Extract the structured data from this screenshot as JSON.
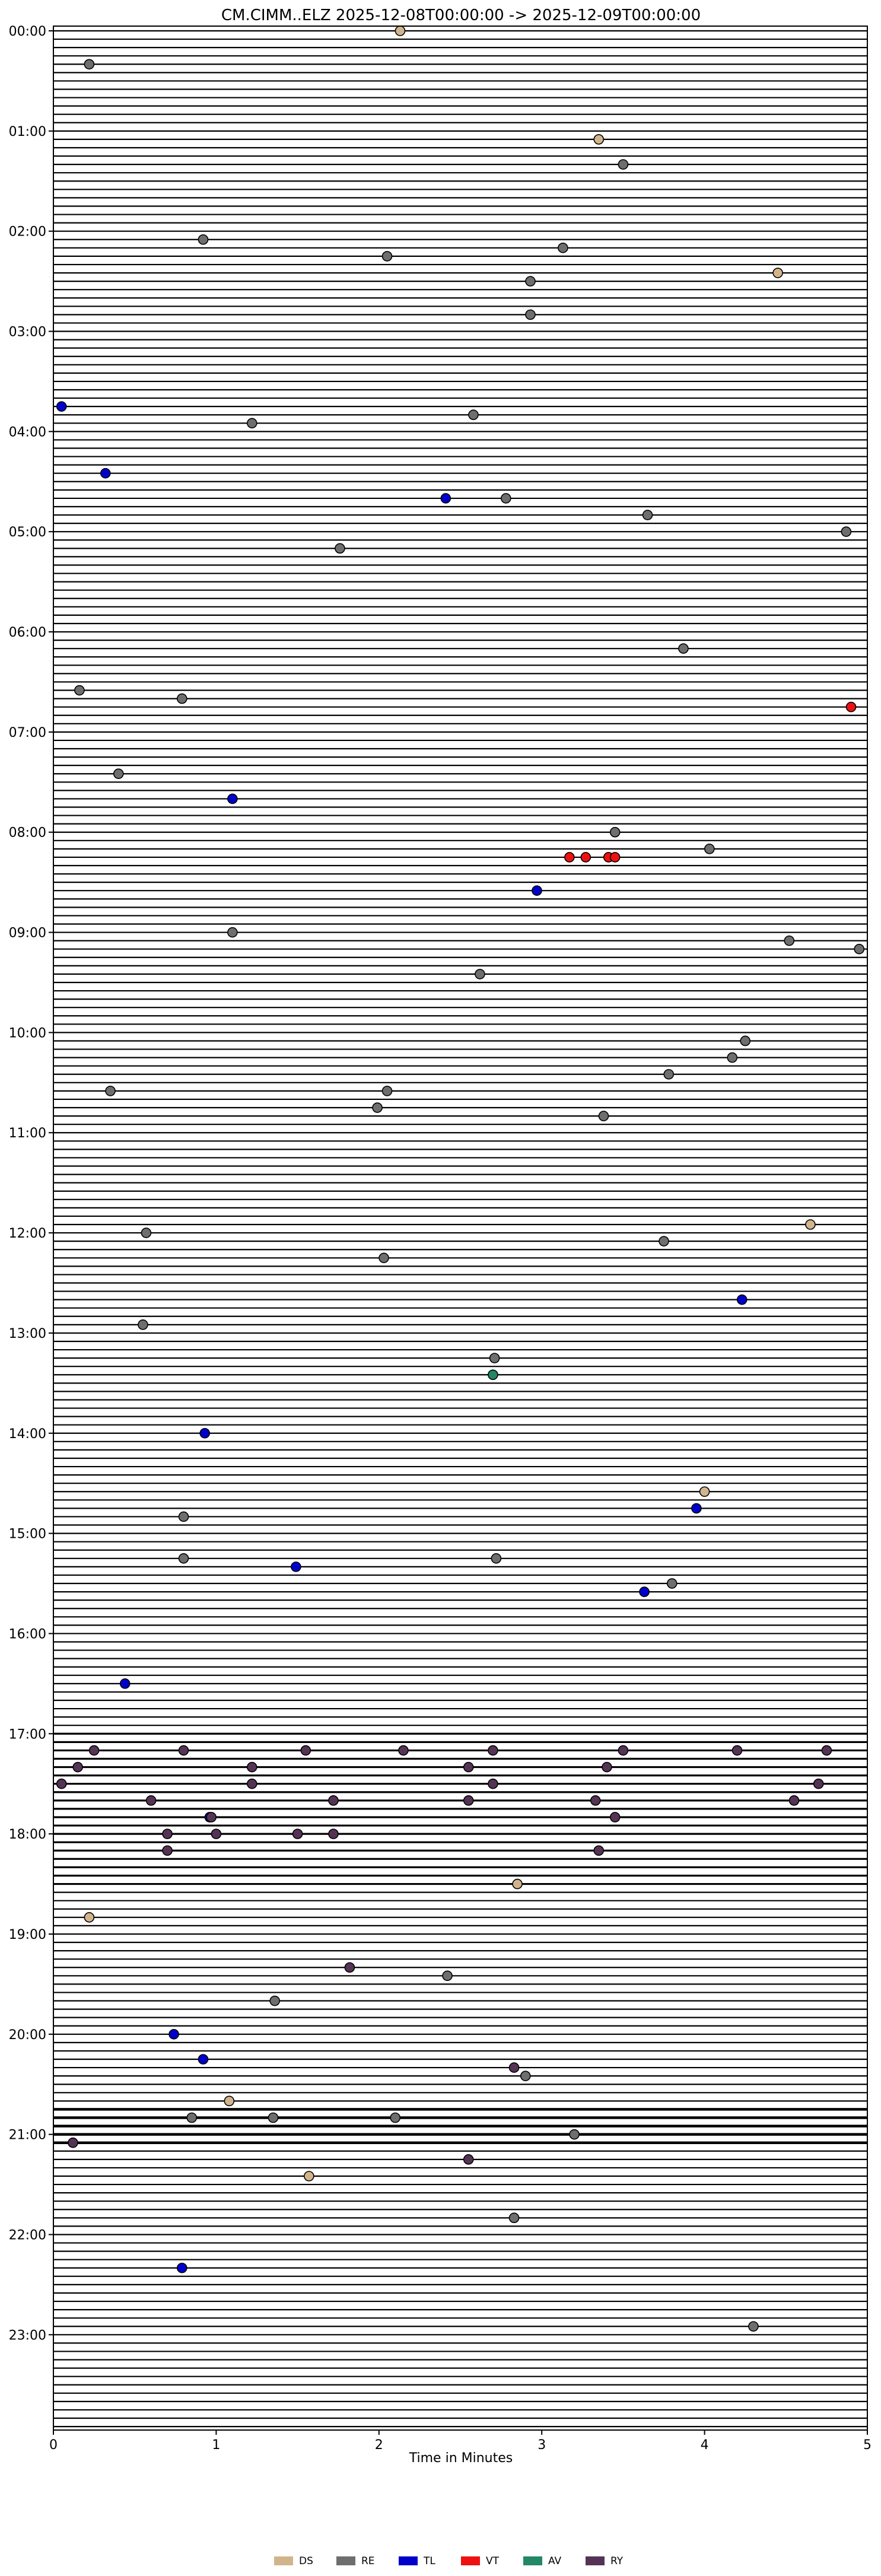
{
  "chart_data": {
    "type": "scatter",
    "title": "CM.CIMM..ELZ  2025-12-08T00:00:00 -> 2025-12-09T00:00:00",
    "xlabel": "Time in Minutes",
    "ylabel": "",
    "xlim": [
      0,
      5
    ],
    "x_ticks": [
      "0",
      "1",
      "2",
      "3",
      "4",
      "5"
    ],
    "y_ticks": [
      "00:00",
      "01:00",
      "02:00",
      "03:00",
      "04:00",
      "05:00",
      "06:00",
      "07:00",
      "08:00",
      "09:00",
      "10:00",
      "11:00",
      "12:00",
      "13:00",
      "14:00",
      "15:00",
      "16:00",
      "17:00",
      "18:00",
      "19:00",
      "20:00",
      "21:00",
      "22:00",
      "23:00"
    ],
    "rows_per_hour": 12,
    "grid": false,
    "legend_position": "bottom-center",
    "series": [
      {
        "name": "DS",
        "color": "#d2b48c",
        "points": [
          {
            "row": 0,
            "x": 2.13
          },
          {
            "row": 13,
            "x": 3.35
          },
          {
            "row": 29,
            "x": 4.45
          },
          {
            "row": 143,
            "x": 4.65
          },
          {
            "row": 175,
            "x": 4.0
          },
          {
            "row": 222,
            "x": 2.85
          },
          {
            "row": 226,
            "x": 0.22
          },
          {
            "row": 248,
            "x": 1.08
          },
          {
            "row": 257,
            "x": 1.57
          }
        ]
      },
      {
        "name": "RE",
        "color": "#6e6e6e",
        "points": [
          {
            "row": 4,
            "x": 0.22
          },
          {
            "row": 16,
            "x": 3.5
          },
          {
            "row": 25,
            "x": 0.92
          },
          {
            "row": 27,
            "x": 2.05
          },
          {
            "row": 26,
            "x": 3.13
          },
          {
            "row": 30,
            "x": 2.93
          },
          {
            "row": 34,
            "x": 2.93
          },
          {
            "row": 46,
            "x": 2.58
          },
          {
            "row": 47,
            "x": 1.22
          },
          {
            "row": 56,
            "x": 2.78
          },
          {
            "row": 58,
            "x": 3.65
          },
          {
            "row": 60,
            "x": 4.87
          },
          {
            "row": 62,
            "x": 1.76
          },
          {
            "row": 74,
            "x": 3.87
          },
          {
            "row": 79,
            "x": 0.16
          },
          {
            "row": 80,
            "x": 0.79
          },
          {
            "row": 89,
            "x": 0.4
          },
          {
            "row": 96,
            "x": 3.45
          },
          {
            "row": 98,
            "x": 4.03
          },
          {
            "row": 108,
            "x": 1.1
          },
          {
            "row": 109,
            "x": 4.52
          },
          {
            "row": 110,
            "x": 4.95
          },
          {
            "row": 113,
            "x": 2.62
          },
          {
            "row": 121,
            "x": 4.25
          },
          {
            "row": 123,
            "x": 4.17
          },
          {
            "row": 125,
            "x": 3.78
          },
          {
            "row": 127,
            "x": 0.35
          },
          {
            "row": 127,
            "x": 2.05
          },
          {
            "row": 129,
            "x": 1.99
          },
          {
            "row": 130,
            "x": 3.38
          },
          {
            "row": 144,
            "x": 0.57
          },
          {
            "row": 145,
            "x": 3.75
          },
          {
            "row": 147,
            "x": 2.03
          },
          {
            "row": 155,
            "x": 0.55
          },
          {
            "row": 159,
            "x": 2.71
          },
          {
            "row": 178,
            "x": 0.8
          },
          {
            "row": 183,
            "x": 0.8
          },
          {
            "row": 183,
            "x": 2.72
          },
          {
            "row": 186,
            "x": 3.8
          },
          {
            "row": 233,
            "x": 2.42
          },
          {
            "row": 236,
            "x": 1.36
          },
          {
            "row": 245,
            "x": 2.9
          },
          {
            "row": 250,
            "x": 0.85
          },
          {
            "row": 250,
            "x": 1.35
          },
          {
            "row": 250,
            "x": 2.1
          },
          {
            "row": 252,
            "x": 3.2
          },
          {
            "row": 262,
            "x": 2.83
          },
          {
            "row": 275,
            "x": 4.3
          }
        ]
      },
      {
        "name": "TL",
        "color": "#0000cc",
        "points": [
          {
            "row": 45,
            "x": 0.05
          },
          {
            "row": 53,
            "x": 0.32
          },
          {
            "row": 56,
            "x": 2.41
          },
          {
            "row": 92,
            "x": 1.1
          },
          {
            "row": 103,
            "x": 2.97
          },
          {
            "row": 152,
            "x": 4.23
          },
          {
            "row": 168,
            "x": 0.93
          },
          {
            "row": 177,
            "x": 3.95
          },
          {
            "row": 184,
            "x": 1.49
          },
          {
            "row": 187,
            "x": 3.63
          },
          {
            "row": 198,
            "x": 0.44
          },
          {
            "row": 214,
            "x": 0.96
          },
          {
            "row": 240,
            "x": 0.74
          },
          {
            "row": 243,
            "x": 0.92
          },
          {
            "row": 268,
            "x": 0.79
          }
        ]
      },
      {
        "name": "VT",
        "color": "#ee1111",
        "points": [
          {
            "row": 81,
            "x": 4.9
          },
          {
            "row": 99,
            "x": 3.17
          },
          {
            "row": 99,
            "x": 3.27
          },
          {
            "row": 99,
            "x": 3.41
          },
          {
            "row": 99,
            "x": 3.45
          }
        ]
      },
      {
        "name": "AV",
        "color": "#228866",
        "points": [
          {
            "row": 161,
            "x": 2.7
          }
        ]
      },
      {
        "name": "RY",
        "color": "#553355",
        "points": [
          {
            "row": 206,
            "x": 0.25
          },
          {
            "row": 206,
            "x": 0.8
          },
          {
            "row": 206,
            "x": 1.55
          },
          {
            "row": 206,
            "x": 2.15
          },
          {
            "row": 206,
            "x": 2.7
          },
          {
            "row": 206,
            "x": 3.5
          },
          {
            "row": 206,
            "x": 4.2
          },
          {
            "row": 206,
            "x": 4.75
          },
          {
            "row": 208,
            "x": 0.15
          },
          {
            "row": 208,
            "x": 1.22
          },
          {
            "row": 208,
            "x": 2.55
          },
          {
            "row": 208,
            "x": 3.4
          },
          {
            "row": 210,
            "x": 0.05
          },
          {
            "row": 210,
            "x": 1.22
          },
          {
            "row": 210,
            "x": 2.7
          },
          {
            "row": 210,
            "x": 4.7
          },
          {
            "row": 212,
            "x": 0.6
          },
          {
            "row": 212,
            "x": 1.72
          },
          {
            "row": 212,
            "x": 2.55
          },
          {
            "row": 212,
            "x": 3.33
          },
          {
            "row": 212,
            "x": 4.55
          },
          {
            "row": 214,
            "x": 0.97
          },
          {
            "row": 214,
            "x": 3.45
          },
          {
            "row": 216,
            "x": 0.7
          },
          {
            "row": 216,
            "x": 1.0
          },
          {
            "row": 216,
            "x": 1.5
          },
          {
            "row": 216,
            "x": 1.72
          },
          {
            "row": 218,
            "x": 0.7
          },
          {
            "row": 218,
            "x": 3.35
          },
          {
            "row": 232,
            "x": 1.82
          },
          {
            "row": 244,
            "x": 2.83
          },
          {
            "row": 253,
            "x": 0.12
          },
          {
            "row": 255,
            "x": 2.55
          }
        ]
      }
    ]
  }
}
